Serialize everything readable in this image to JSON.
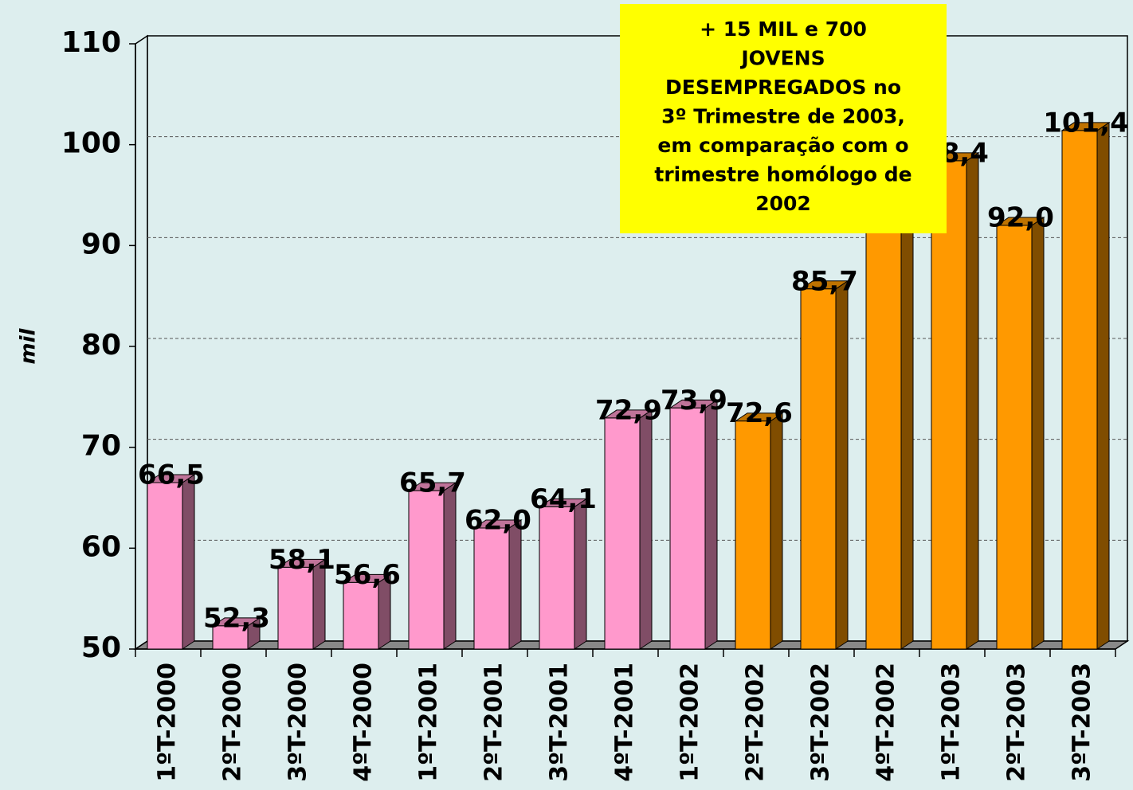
{
  "chart_data": {
    "type": "bar3d",
    "y_label": "mil",
    "annotation": [
      "+ 15 MIL e 700",
      "JOVENS",
      "DESEMPREGADOS no",
      "3º Trimestre de 2003,",
      "em comparação com o",
      "trimestre homólogo de",
      "2002"
    ],
    "categories": [
      "1ºT-2000",
      "2ºT-2000",
      "3ºT-2000",
      "4ºT-2000",
      "1ºT-2001",
      "2ºT-2001",
      "3ºT-2001",
      "4ºT-2001",
      "1ºT-2002",
      "2ºT-2002",
      "3ºT-2002",
      "4ºT-2002",
      "1ºT-2003",
      "2ºT-2003",
      "3ºT-2003"
    ],
    "values": [
      66.5,
      52.3,
      58.1,
      56.6,
      65.7,
      62.0,
      64.1,
      72.9,
      73.9,
      72.6,
      85.7,
      95,
      98.4,
      92.0,
      101.4
    ],
    "value_labels": [
      "66,5",
      "52,3",
      "58,1",
      "56,6",
      "65,7",
      "62,0",
      "64,1",
      "72,9",
      "73,9",
      "72,6",
      "85,7",
      null,
      "98,4",
      "92,0",
      "101,4"
    ],
    "colors": [
      "#ff99cc",
      "#ff99cc",
      "#ff99cc",
      "#ff99cc",
      "#ff99cc",
      "#ff99cc",
      "#ff99cc",
      "#ff99cc",
      "#ff99cc",
      "#ff9900",
      "#ff9900",
      "#ff9900",
      "#ff9900",
      "#ff9900",
      "#ff9900"
    ],
    "ylim": [
      50,
      110
    ],
    "yticks": [
      50,
      60,
      70,
      80,
      90,
      100,
      110
    ],
    "grid": true
  }
}
